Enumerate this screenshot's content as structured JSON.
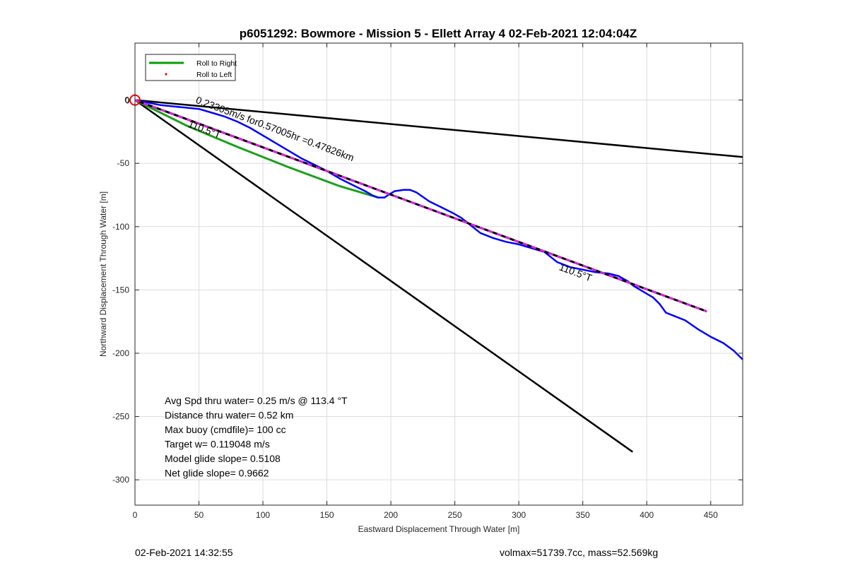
{
  "footer": {
    "timestamp": "02-Feb-2021 14:32:55",
    "volmax_mass": "volmax=51739.7cc, mass=52.569kg"
  },
  "chart_data": {
    "type": "line",
    "title": "p6051292: Bowmore - Mission 5 - Ellett Array 4 02-Feb-2021 12:04:04Z",
    "xlabel": "Eastward Displacement Through Water [m]",
    "ylabel": "Northward Displacement Through Water [m]",
    "xlim": [
      0,
      475
    ],
    "ylim": [
      -320,
      45
    ],
    "xticks": [
      0,
      50,
      100,
      150,
      200,
      250,
      300,
      350,
      400,
      450
    ],
    "yticks": [
      0,
      -50,
      -100,
      -150,
      -200,
      -250,
      -300
    ],
    "grid": true,
    "legend_position": "top-left",
    "legend": [
      {
        "label": "Roll to Right",
        "color": "#00a000",
        "style": "line"
      },
      {
        "label": "Roll to Left",
        "color": "#ff0000",
        "style": "dot"
      }
    ],
    "series": [
      {
        "name": "Roll to Right",
        "color": "#1aa01a",
        "x": [
          0,
          40,
          80,
          120,
          160,
          180,
          190
        ],
        "y": [
          0,
          -20,
          -37,
          -53,
          -68,
          -74,
          -77
        ]
      },
      {
        "color": "#0000ff",
        "x": [
          0,
          10,
          20,
          30,
          40,
          50,
          60,
          70,
          80,
          90,
          100,
          110,
          120,
          130,
          140,
          150,
          160,
          170,
          180,
          185,
          190,
          195,
          198,
          203,
          210,
          215,
          220,
          230,
          240,
          248,
          255,
          260,
          265,
          270,
          280,
          290,
          300,
          310,
          320,
          325,
          330,
          340,
          350,
          360,
          370,
          378,
          385,
          390,
          395,
          400,
          405,
          410,
          415,
          420,
          430,
          440,
          450,
          460,
          468,
          472,
          475
        ],
        "y": [
          0,
          -2,
          -4,
          -5,
          -6,
          -7,
          -10,
          -13,
          -17,
          -22,
          -28,
          -34,
          -40,
          -46,
          -51,
          -56,
          -62,
          -67,
          -72,
          -75,
          -77,
          -77,
          -75,
          -72,
          -71,
          -71,
          -73,
          -80,
          -85,
          -89,
          -93,
          -97,
          -101,
          -105,
          -109,
          -112,
          -114,
          -117,
          -120,
          -124,
          -128,
          -132,
          -134,
          -136,
          -137,
          -139,
          -143,
          -147,
          -150,
          -153,
          -156,
          -161,
          -168,
          -170,
          -174,
          -181,
          -187,
          -192,
          -198,
          -202,
          -205
        ]
      },
      {
        "color": "#e020e0",
        "style": "dashed-black",
        "x": [
          0,
          447
        ],
        "y": [
          0,
          -167
        ]
      },
      {
        "color": "#000000",
        "x": [
          0,
          475
        ],
        "y": [
          0,
          -45
        ]
      },
      {
        "color": "#000000",
        "x": [
          0,
          389
        ],
        "y": [
          0,
          -278
        ]
      }
    ],
    "start_marker": {
      "x": 0,
      "y": 0,
      "color": "#ff0000",
      "shape": "circle"
    },
    "annotations": [
      {
        "text": "0.23305m/s for0.57005hr =0.47826km",
        "x": 47,
        "y": -2,
        "rotation": 20.5
      },
      {
        "text": "110.5°T",
        "x": 41,
        "y": -21,
        "rotation": 20.5
      },
      {
        "text": "110.5°T",
        "x": 331,
        "y": -134,
        "rotation": 20.5
      }
    ],
    "stats": [
      "Avg Spd thru water=  0.25 m/s @ 113.4 °T",
      "Distance thru water=  0.52 km",
      "Max buoy (cmdfile)= 100 cc",
      "Target w= 0.119048 m/s",
      "Model glide slope= 0.5108",
      "Net glide slope= 0.9662"
    ],
    "origin_label": "0"
  }
}
